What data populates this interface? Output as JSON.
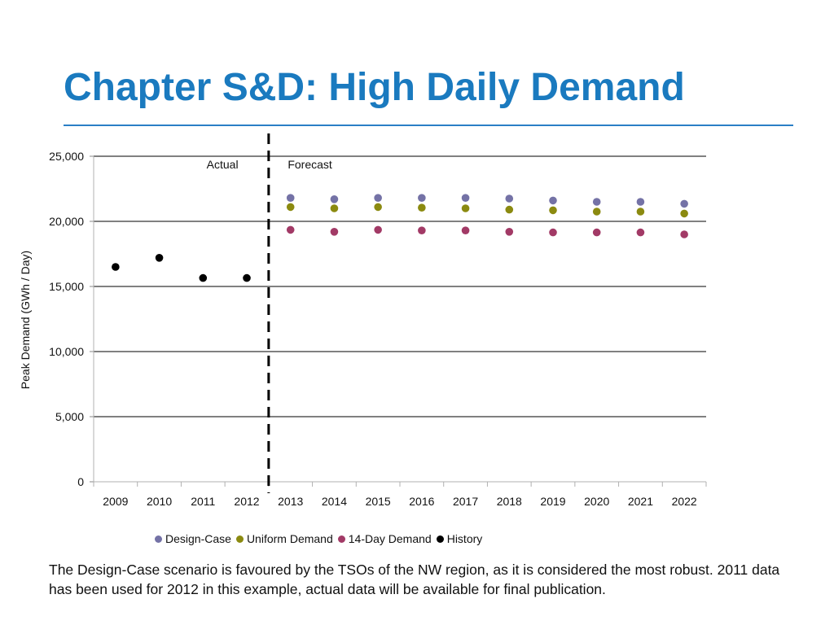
{
  "slide": {
    "title": "Chapter S&D: High Daily Demand",
    "caption": "The Design-Case scenario is favoured by the TSOs of the NW region, as it is considered the most robust. 2011 data has been used for 2012 in this example, actual data will be available for final publication."
  },
  "colors": {
    "title": "#1a7abf",
    "design_case": "#7472a6",
    "uniform_demand": "#8b8a10",
    "day14_demand": "#a23a66",
    "history": "#000000"
  },
  "chart_data": {
    "type": "scatter",
    "title": "",
    "xlabel": "",
    "ylabel": "Peak Demand  (GWh / Day)",
    "categories": [
      "2009",
      "2010",
      "2011",
      "2012",
      "2013",
      "2014",
      "2015",
      "2016",
      "2017",
      "2018",
      "2019",
      "2020",
      "2021",
      "2022"
    ],
    "ylim": [
      0,
      25000
    ],
    "yticks": [
      0,
      5000,
      10000,
      15000,
      20000,
      25000
    ],
    "ytick_labels": [
      "0",
      "5,000",
      "10,000",
      "15,000",
      "20,000",
      "25,000"
    ],
    "grid": true,
    "divider": {
      "between": [
        "2012",
        "2013"
      ],
      "style": "dashed"
    },
    "annotations": {
      "left": "Actual",
      "right": "Forecast"
    },
    "legend_position": "bottom",
    "series": [
      {
        "name": "Design-Case",
        "color": "#7472a6",
        "values": [
          null,
          null,
          null,
          null,
          21800,
          21700,
          21800,
          21800,
          21800,
          21750,
          21600,
          21500,
          21500,
          21350
        ]
      },
      {
        "name": "Uniform Demand",
        "color": "#8b8a10",
        "values": [
          null,
          null,
          null,
          null,
          21100,
          21000,
          21100,
          21050,
          21000,
          20900,
          20850,
          20750,
          20750,
          20600
        ]
      },
      {
        "name": "14-Day Demand",
        "color": "#a23a66",
        "values": [
          null,
          null,
          null,
          null,
          19350,
          19200,
          19350,
          19300,
          19300,
          19200,
          19150,
          19150,
          19150,
          19000
        ]
      },
      {
        "name": "History",
        "color": "#000000",
        "values": [
          16500,
          17200,
          15650,
          15650,
          null,
          null,
          null,
          null,
          null,
          null,
          null,
          null,
          null,
          null
        ]
      }
    ]
  }
}
